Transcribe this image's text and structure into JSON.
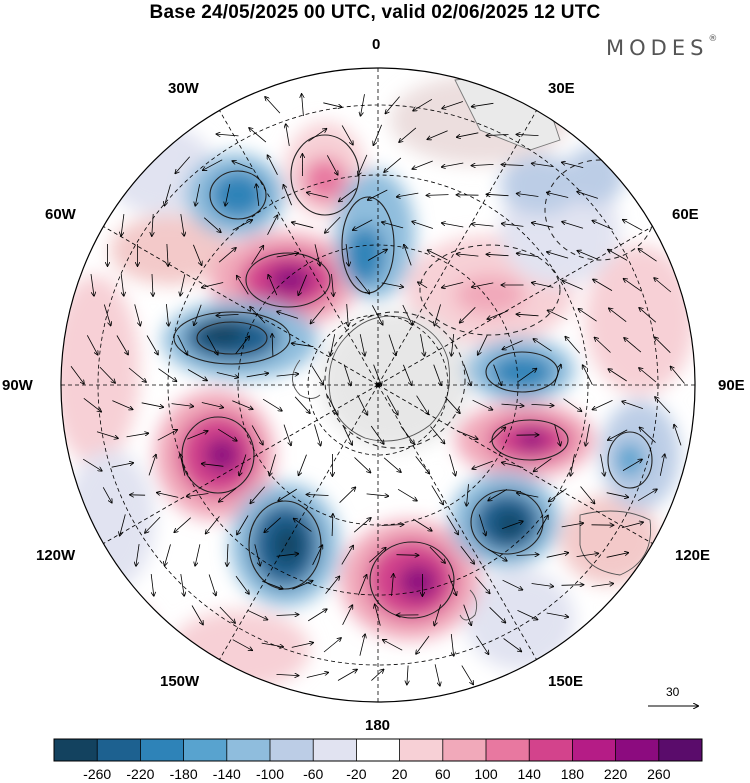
{
  "title": "Base 24/05/2025 00 UTC, valid 02/06/2025 12 UTC",
  "brand": "MODES",
  "brand_mark": "®",
  "longitude_labels": {
    "lon_0": "0",
    "lon_30e": "30E",
    "lon_60e": "60E",
    "lon_90e": "90E",
    "lon_120e": "120E",
    "lon_150e": "150E",
    "lon_180": "180",
    "lon_150w": "150W",
    "lon_120w": "120W",
    "lon_90w": "90W",
    "lon_60w": "60W",
    "lon_30w": "30W"
  },
  "wind_reference": "30",
  "colorbar": {
    "ticks": [
      "-260",
      "-220",
      "-180",
      "-140",
      "-100",
      "-60",
      "-20",
      "20",
      "60",
      "100",
      "140",
      "180",
      "220",
      "260"
    ],
    "colors": [
      "#13425f",
      "#1d6190",
      "#2e83b8",
      "#58a3cf",
      "#8fbddd",
      "#bccde6",
      "#e1e3f1",
      "#ffffff",
      "#f7d0d6",
      "#f1a9ba",
      "#e878a0",
      "#d3438c",
      "#b51c86",
      "#8c0b7f",
      "#5a0c6b"
    ]
  }
}
